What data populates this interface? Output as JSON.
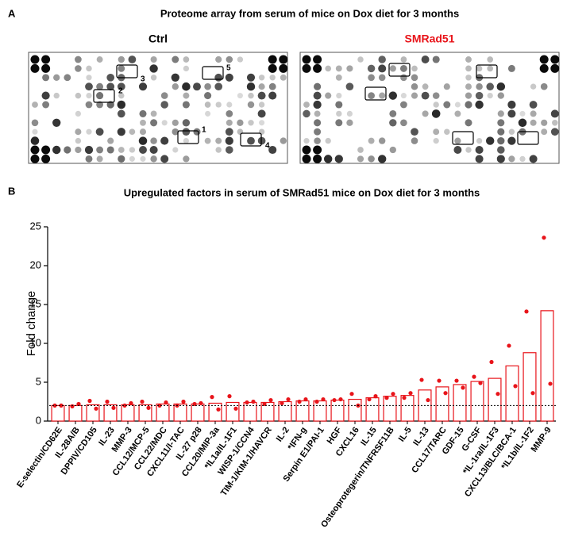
{
  "panel_a": {
    "label": "A",
    "title": "Proteome array from serum of mice on Dox diet for 3 months",
    "arrays": [
      {
        "title": "Ctrl",
        "color": "#000000"
      },
      {
        "title": "SMRad51",
        "color": "#e8141a"
      }
    ],
    "box_labels": [
      "1",
      "2",
      "3",
      "4",
      "5"
    ]
  },
  "chart_data": {
    "type": "bar",
    "panel_label": "B",
    "title": "Upregulated factors in serum of SMRad51 mice on Dox diet for 3 months",
    "ylabel": "Fold change",
    "categories": [
      "E-selectin/CD62E",
      "IL-28A/B",
      "DPPIV/CD105",
      "IL-23",
      "MMP-3",
      "CCL12/MCP-5",
      "CCL22/MDC",
      "CXCL11/I-TAC",
      "IL-27 p28",
      "CCL20/MIP-3a",
      "*IL1a/IL-1F1",
      "WISP-1/CCN4",
      "TIM-1/KIM-1/HAVCR",
      "IL-2",
      "*IFN-g",
      "Serpin E1/PAI-1",
      "HGF",
      "CXCL16",
      "IL-15",
      "Osteoprotegerin/TNFRSF11B",
      "IL-5",
      "IL-13",
      "CCL17/TARC",
      "GDF-15",
      "G-CSF",
      "*IL-1ra/IL-1F3",
      "CXCL13/BLC/BCA-1",
      "*IL1b/IL-1F2",
      "MMP-9"
    ],
    "values": [
      2.0,
      2.0,
      2.1,
      2.1,
      2.1,
      2.1,
      2.2,
      2.2,
      2.2,
      2.3,
      2.4,
      2.4,
      2.4,
      2.5,
      2.6,
      2.6,
      2.7,
      2.8,
      3.0,
      3.2,
      3.3,
      4.0,
      4.4,
      4.7,
      5.1,
      5.5,
      7.1,
      8.8,
      14.2
    ],
    "replicates": [
      [
        2.0,
        1.9,
        2.6,
        2.5,
        2.0,
        2.5,
        2.0,
        2.0,
        2.2,
        3.1,
        3.2,
        2.4,
        2.2,
        2.3,
        2.5,
        2.5,
        2.7,
        3.5,
        2.8,
        3.0,
        3.0,
        5.3,
        5.2,
        5.2,
        5.7,
        7.6,
        9.7,
        14.1,
        23.6
      ],
      [
        2.0,
        2.2,
        1.6,
        1.7,
        2.3,
        1.7,
        2.4,
        2.5,
        2.3,
        1.5,
        1.6,
        2.5,
        2.7,
        2.8,
        2.8,
        2.8,
        2.8,
        2.0,
        3.2,
        3.5,
        3.6,
        2.7,
        3.6,
        4.3,
        4.9,
        3.5,
        4.5,
        3.6,
        4.8
      ]
    ],
    "color": "#e8141a",
    "reference_line": 2,
    "ylim": [
      0,
      25
    ],
    "yticks": [
      0,
      5,
      10,
      15,
      20,
      25
    ]
  }
}
